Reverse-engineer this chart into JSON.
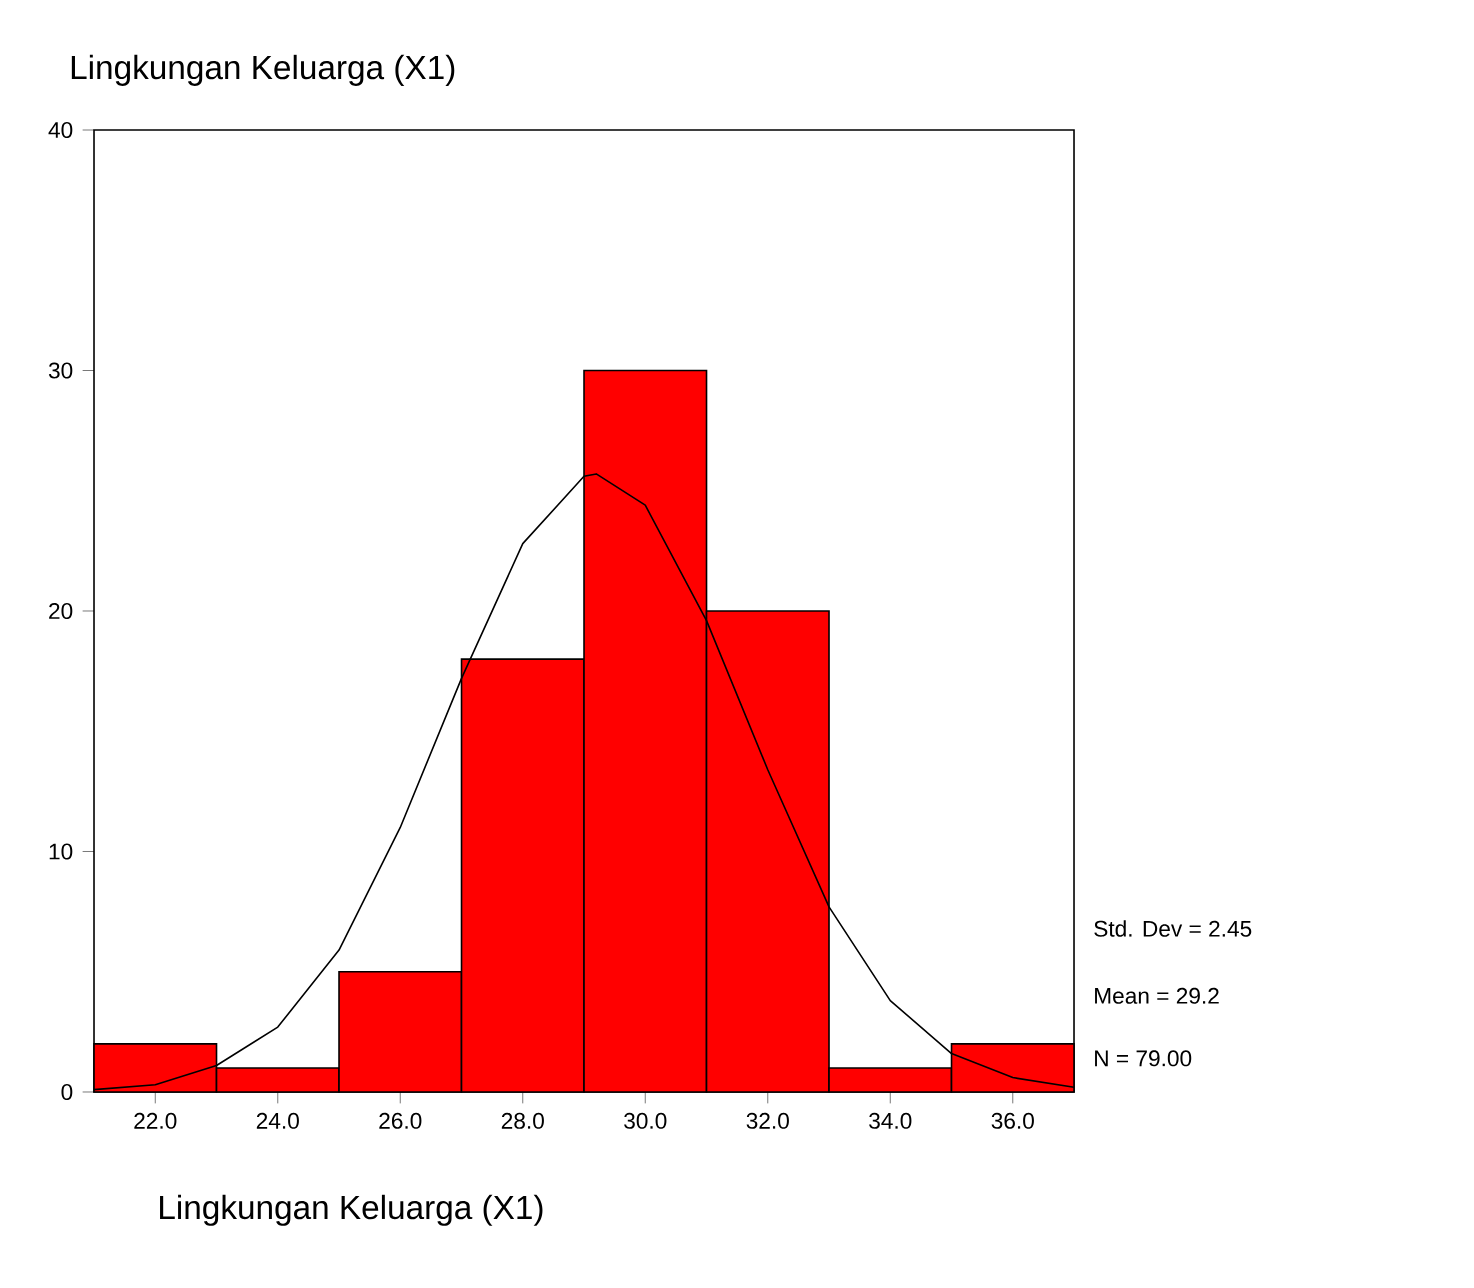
{
  "chart_data": {
    "type": "histogram",
    "title": "Lingkungan Keluarga (X1)",
    "xlabel": "Lingkungan Keluarga (X1)",
    "bins": [
      21,
      23,
      25,
      27,
      29,
      31,
      33,
      35,
      37
    ],
    "series": [
      {
        "color": "#ff0000",
        "values": [
          2,
          1,
          5,
          18,
          30,
          20,
          1,
          2
        ]
      },
      {
        "type": "line",
        "color": "#000000",
        "x": [
          21,
          22,
          23,
          24,
          25,
          26,
          27,
          28,
          29,
          29.2,
          30,
          31,
          32,
          33,
          34,
          35,
          36,
          37
        ],
        "values": [
          0.1,
          0.3,
          1.1,
          2.7,
          5.9,
          11.0,
          17.2,
          22.8,
          25.6,
          25.7,
          24.4,
          19.6,
          13.4,
          7.7,
          3.8,
          1.6,
          0.6,
          0.2
        ]
      }
    ],
    "xlim": [
      21,
      37
    ],
    "ylim": [
      0,
      40
    ],
    "xticks": [
      {
        "value": 22,
        "label": "22.0"
      },
      {
        "value": 24,
        "label": "24.0"
      },
      {
        "value": 26,
        "label": "26.0"
      },
      {
        "value": 28,
        "label": "28.0"
      },
      {
        "value": 30,
        "label": "30.0"
      },
      {
        "value": 32,
        "label": "32.0"
      },
      {
        "value": 34,
        "label": "34.0"
      },
      {
        "value": 36,
        "label": "36.0"
      }
    ],
    "yticks": [
      0,
      10,
      20,
      30,
      40
    ],
    "annotations": [
      "Std. Dev = 2.45",
      "Mean = 29.2",
      "N = 79.00"
    ]
  }
}
